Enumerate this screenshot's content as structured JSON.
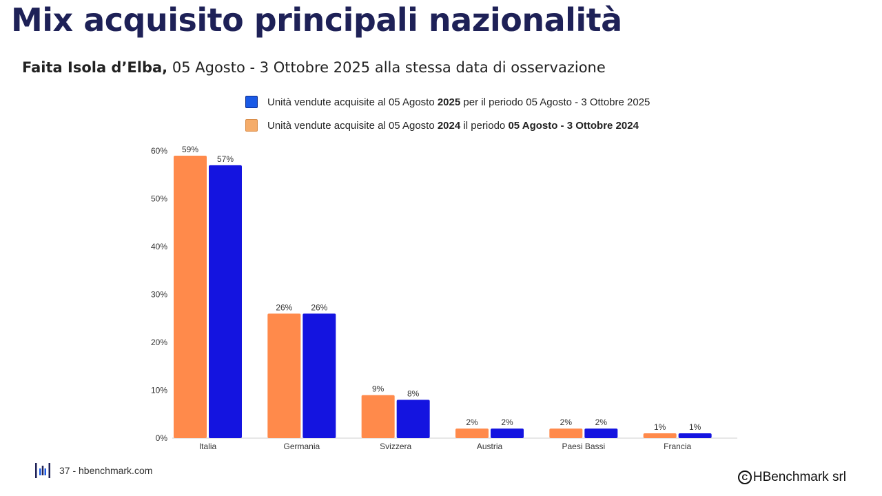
{
  "title": "Mix acquisito principali nazionalità",
  "subtitle": {
    "bold": "Faita Isola d’Elba,",
    "rest": " 05 Agosto - 3 Ottobre 2025 alla stessa data di osservazione"
  },
  "legend": {
    "item_2025": {
      "pre": "Unità vendute acquisite al 05 Agosto ",
      "bold": "2025",
      "post": " per il periodo 05 Agosto - 3 Ottobre 2025",
      "color": "#1a5ae6"
    },
    "item_2024": {
      "pre": "Unità vendute acquisite al 05 Agosto ",
      "bold": "2024",
      "mid": " il periodo ",
      "bold2": "05 Agosto - 3 Ottobre 2024",
      "color": "#f5ac6a"
    }
  },
  "chart_data": {
    "type": "bar",
    "categories": [
      "Italia",
      "Germania",
      "Svizzera",
      "Austria",
      "Paesi Bassi",
      "Francia"
    ],
    "series": [
      {
        "values": [
          59,
          26,
          9,
          2,
          2,
          1
        ],
        "labels": [
          "59%",
          "26%",
          "9%",
          "2%",
          "2%",
          "1%"
        ],
        "color": "#ff8a4b"
      },
      {
        "values": [
          57,
          26,
          8,
          2,
          2,
          1
        ],
        "labels": [
          "57%",
          "26%",
          "8%",
          "2%",
          "2%",
          "1%"
        ],
        "color": "#1414e0"
      }
    ],
    "y_ticks": [
      "0%",
      "10%",
      "20%",
      "30%",
      "40%",
      "50%",
      "60%"
    ],
    "ylim": [
      0,
      60
    ],
    "grid": false
  },
  "footer": {
    "page_text": "37 - hbenchmark.com",
    "copyright_symbol": "C",
    "copyright_text": "HBenchmark srl"
  }
}
